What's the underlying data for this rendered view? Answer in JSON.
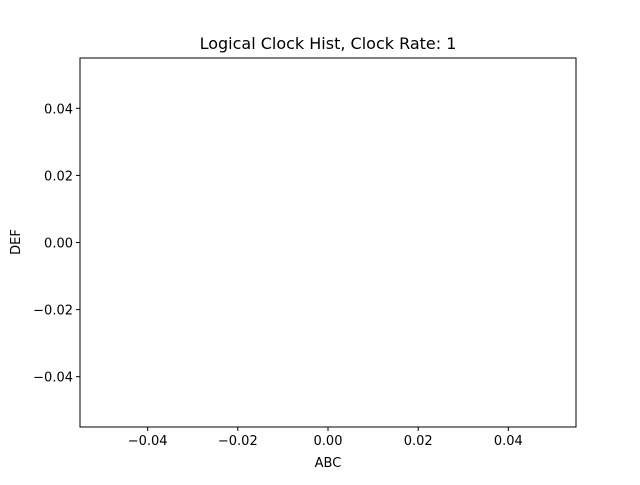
{
  "chart_data": {
    "type": "bar",
    "title": "Logical Clock Hist, Clock Rate: 1",
    "xlabel": "ABC",
    "ylabel": "DEF",
    "categories": [],
    "values": [],
    "xlim": [
      -0.055,
      0.055
    ],
    "ylim": [
      -0.055,
      0.055
    ],
    "xticks": [
      -0.04,
      -0.02,
      0.0,
      0.02,
      0.04
    ],
    "xtick_labels": [
      "−0.04",
      "−0.02",
      "0.00",
      "0.02",
      "0.04"
    ],
    "yticks": [
      0.04,
      0.02,
      0.0,
      -0.02,
      -0.04
    ],
    "ytick_labels": [
      "0.04",
      "0.02",
      "0.00",
      "−0.02",
      "−0.04"
    ],
    "grid": false,
    "legend": "none"
  }
}
